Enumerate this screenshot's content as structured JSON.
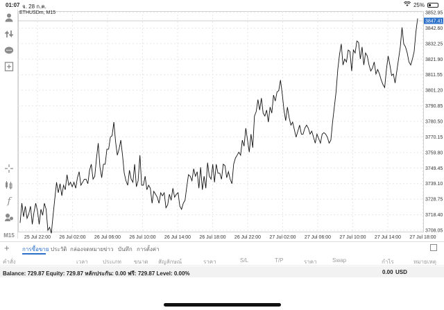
{
  "status_bar": {
    "time": "01:07",
    "date": "จ. 28 ก.ค.",
    "battery": "25%",
    "battery_level": 0.25
  },
  "chart": {
    "symbol": "ETHUSDm, M15",
    "current_price": "3847.41",
    "price_ticks": [
      "3852.95",
      "3842.60",
      "3832.25",
      "3821.90",
      "3811.55",
      "3801.20",
      "3790.85",
      "3780.50",
      "3770.15",
      "3759.80",
      "3749.45",
      "3739.10",
      "3728.75",
      "3718.40",
      "3708.05"
    ],
    "time_ticks": [
      "25 Jul 22:00",
      "26 Jul 02:00",
      "26 Jul 06:00",
      "26 Jul 10:00",
      "26 Jul 14:00",
      "26 Jul 18:00",
      "26 Jul 22:00",
      "27 Jul 02:00",
      "27 Jul 06:00",
      "27 Jul 10:00",
      "27 Jul 14:00",
      "27 Jul 18:00"
    ]
  },
  "chart_data": {
    "type": "line",
    "title": "ETHUSDm, M15",
    "xlabel": "",
    "ylabel": "",
    "ylim": [
      3703,
      3853
    ],
    "grid": true,
    "series": [
      {
        "name": "",
        "values": [
          3713,
          3726,
          3717,
          3724,
          3716,
          3719,
          3724,
          3712,
          3720,
          3726,
          3721,
          3712,
          3722,
          3718,
          3726,
          3722,
          3708,
          3710,
          3706,
          3718,
          3729,
          3740,
          3733,
          3739,
          3731,
          3738,
          3735,
          3745,
          3738,
          3740,
          3737,
          3740,
          3736,
          3743,
          3747,
          3738,
          3740,
          3742,
          3742,
          3739,
          3748,
          3752,
          3742,
          3744,
          3756,
          3766,
          3750,
          3743,
          3752,
          3752,
          3762,
          3762,
          3770,
          3771,
          3780,
          3767,
          3758,
          3762,
          3768,
          3758,
          3746,
          3741,
          3738,
          3748,
          3742,
          3740,
          3752,
          3737,
          3741,
          3758,
          3738,
          3738,
          3744,
          3735,
          3738,
          3736,
          3726,
          3734,
          3732,
          3730,
          3726,
          3733,
          3731,
          3733,
          3723,
          3725,
          3732,
          3728,
          3736,
          3730,
          3732,
          3733,
          3724,
          3722,
          3726,
          3728,
          3737,
          3745,
          3744,
          3741,
          3749,
          3744,
          3747,
          3736,
          3750,
          3735,
          3744,
          3736,
          3753,
          3744,
          3742,
          3752,
          3740,
          3752,
          3746,
          3746,
          3742,
          3752,
          3751,
          3743,
          3747,
          3742,
          3739,
          3752,
          3756,
          3758,
          3760,
          3758,
          3768,
          3764,
          3776,
          3768,
          3760,
          3772,
          3763,
          3784,
          3787,
          3795,
          3788,
          3796,
          3786,
          3784,
          3788,
          3780,
          3790,
          3786,
          3798,
          3794,
          3800,
          3801,
          3808,
          3799,
          3788,
          3781,
          3790,
          3783,
          3778,
          3780,
          3775,
          3770,
          3774,
          3778,
          3772,
          3772,
          3776,
          3778,
          3776,
          3772,
          3774,
          3770,
          3766,
          3772,
          3769,
          3766,
          3772,
          3773,
          3772,
          3770,
          3766,
          3768,
          3780,
          3790,
          3800,
          3815,
          3825,
          3832,
          3818,
          3822,
          3820,
          3828,
          3827,
          3814,
          3828,
          3826,
          3834,
          3833,
          3822,
          3830,
          3818,
          3826,
          3824,
          3818,
          3814,
          3816,
          3820,
          3812,
          3815,
          3812,
          3808,
          3805,
          3803,
          3815,
          3824,
          3818,
          3811,
          3812,
          3806,
          3814,
          3822,
          3830,
          3843,
          3832,
          3830,
          3826,
          3820,
          3818,
          3822,
          3827,
          3840,
          3849
        ]
      }
    ]
  },
  "tabs": [
    "การซื้อขาย",
    "ประวัติ",
    "กล่องจดหมาย",
    "ข่าว",
    "บันทึก",
    "การตั้งค่า"
  ],
  "columns": [
    "คำสั่ง",
    "เวลา",
    "ประเภท",
    "ขนาด",
    "สัญลักษณ์",
    "ราคา",
    "S/L",
    "T/P",
    "ราคา",
    "Swap",
    "กำไร",
    "หมายเหตุ"
  ],
  "balance": {
    "text": "Balance: 729.87  Equity: 729.87  หลักประกัน: 0.00  ฟรี: 729.87  Level: 0.00%",
    "profit": "0.00",
    "currency": "USD"
  },
  "toolbar": {
    "timeframe": "M15"
  },
  "colors": {
    "accent": "#2a6fc9",
    "price_label_bg": "#2a6fc9",
    "line": "#111111",
    "grid": "#e6e6e6"
  }
}
